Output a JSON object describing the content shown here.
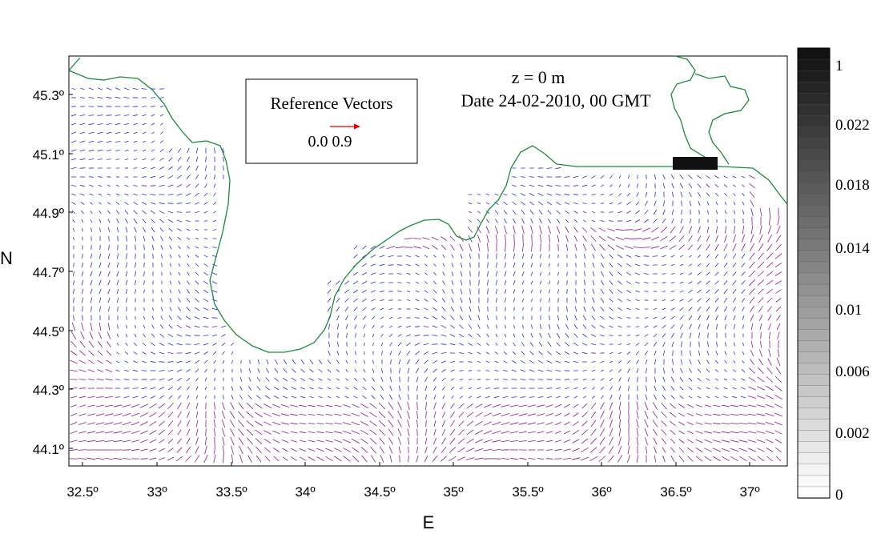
{
  "header": {
    "depth_label": "z =    0 m",
    "date_label": "Date 24-02-2010,  00 GMT"
  },
  "reference_box": {
    "title": "Reference Vectors",
    "value_label": "0.0 0.9",
    "arrow_color": "#e00000"
  },
  "axes": {
    "x_title": "E",
    "y_title": "N",
    "x_ticks": [
      "32.5º",
      "33º",
      "33.5º",
      "34º",
      "34.5º",
      "35º",
      "35.5º",
      "36º",
      "36.5º",
      "37º"
    ],
    "y_ticks": [
      "45.3º",
      "45.1º",
      "44.9º",
      "44.7º",
      "44.5º",
      "44.3º",
      "44.1º"
    ]
  },
  "colorbar": {
    "labels": [
      "1",
      "0.022",
      "0.018",
      "0.014",
      "0.01",
      "0.006",
      "0.002",
      "0"
    ]
  },
  "colors": {
    "coastline": "#1a8a3a",
    "vector_blue": "#2a2ad8",
    "vector_purple": "#8a1a8a",
    "land_block": "#111111"
  }
}
